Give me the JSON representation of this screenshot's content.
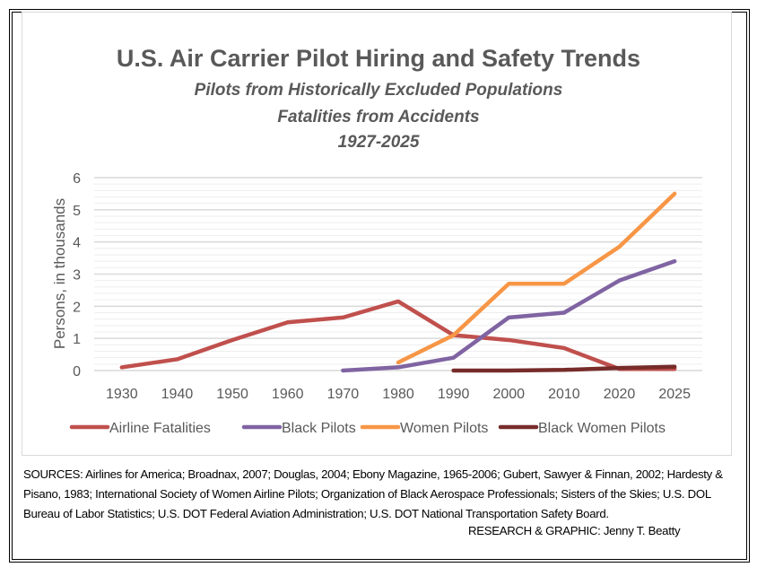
{
  "chart_data": {
    "type": "line",
    "title": "U.S. Air Carrier Pilot Hiring and Safety Trends",
    "subtitles": [
      "Pilots from Historically Excluded Populations",
      "Fatalities from Accidents",
      "1927-2025"
    ],
    "xlabel": "",
    "ylabel": "Persons, in thousands",
    "ylim": [
      0,
      6
    ],
    "yticks": [
      "0",
      "1",
      "2",
      "3",
      "4",
      "5",
      "6"
    ],
    "categories": [
      "1930",
      "1940",
      "1950",
      "1960",
      "1970",
      "1980",
      "1990",
      "2000",
      "2010",
      "2020",
      "2025"
    ],
    "grid": true,
    "legend_position": "bottom",
    "series": [
      {
        "name": "Airline Fatalities",
        "color": "#c0504d",
        "values": [
          0.1,
          0.35,
          0.95,
          1.5,
          1.65,
          2.15,
          1.1,
          0.95,
          0.7,
          0.05,
          0.05
        ]
      },
      {
        "name": "Black Pilots",
        "color": "#8064a2",
        "values": [
          null,
          null,
          null,
          null,
          0.0,
          0.1,
          0.4,
          1.65,
          1.8,
          2.8,
          3.4
        ]
      },
      {
        "name": "Women Pilots",
        "color": "#f79646",
        "values": [
          null,
          null,
          null,
          null,
          null,
          0.25,
          1.1,
          2.7,
          2.7,
          3.85,
          5.5
        ]
      },
      {
        "name": "Black Women Pilots",
        "color": "#772c2a",
        "values": [
          null,
          null,
          null,
          null,
          null,
          null,
          0.0,
          0.0,
          0.02,
          0.08,
          0.12
        ]
      }
    ]
  },
  "footer": {
    "sources": "SOURCES: Airlines for America; Broadnax, 2007; Douglas, 2004; Ebony Magazine, 1965-2006; Gubert, Sawyer & Finnan, 2002; Hardesty & Pisano, 1983; International Society of Women Airline Pilots; Organization of Black Aerospace Professionals; Sisters of the Skies; U.S. DOL Bureau of Labor Statistics; U.S. DOT Federal Aviation Administration; U.S. DOT National Transportation Safety Board.",
    "credit": "RESEARCH & GRAPHIC: Jenny T. Beatty"
  }
}
